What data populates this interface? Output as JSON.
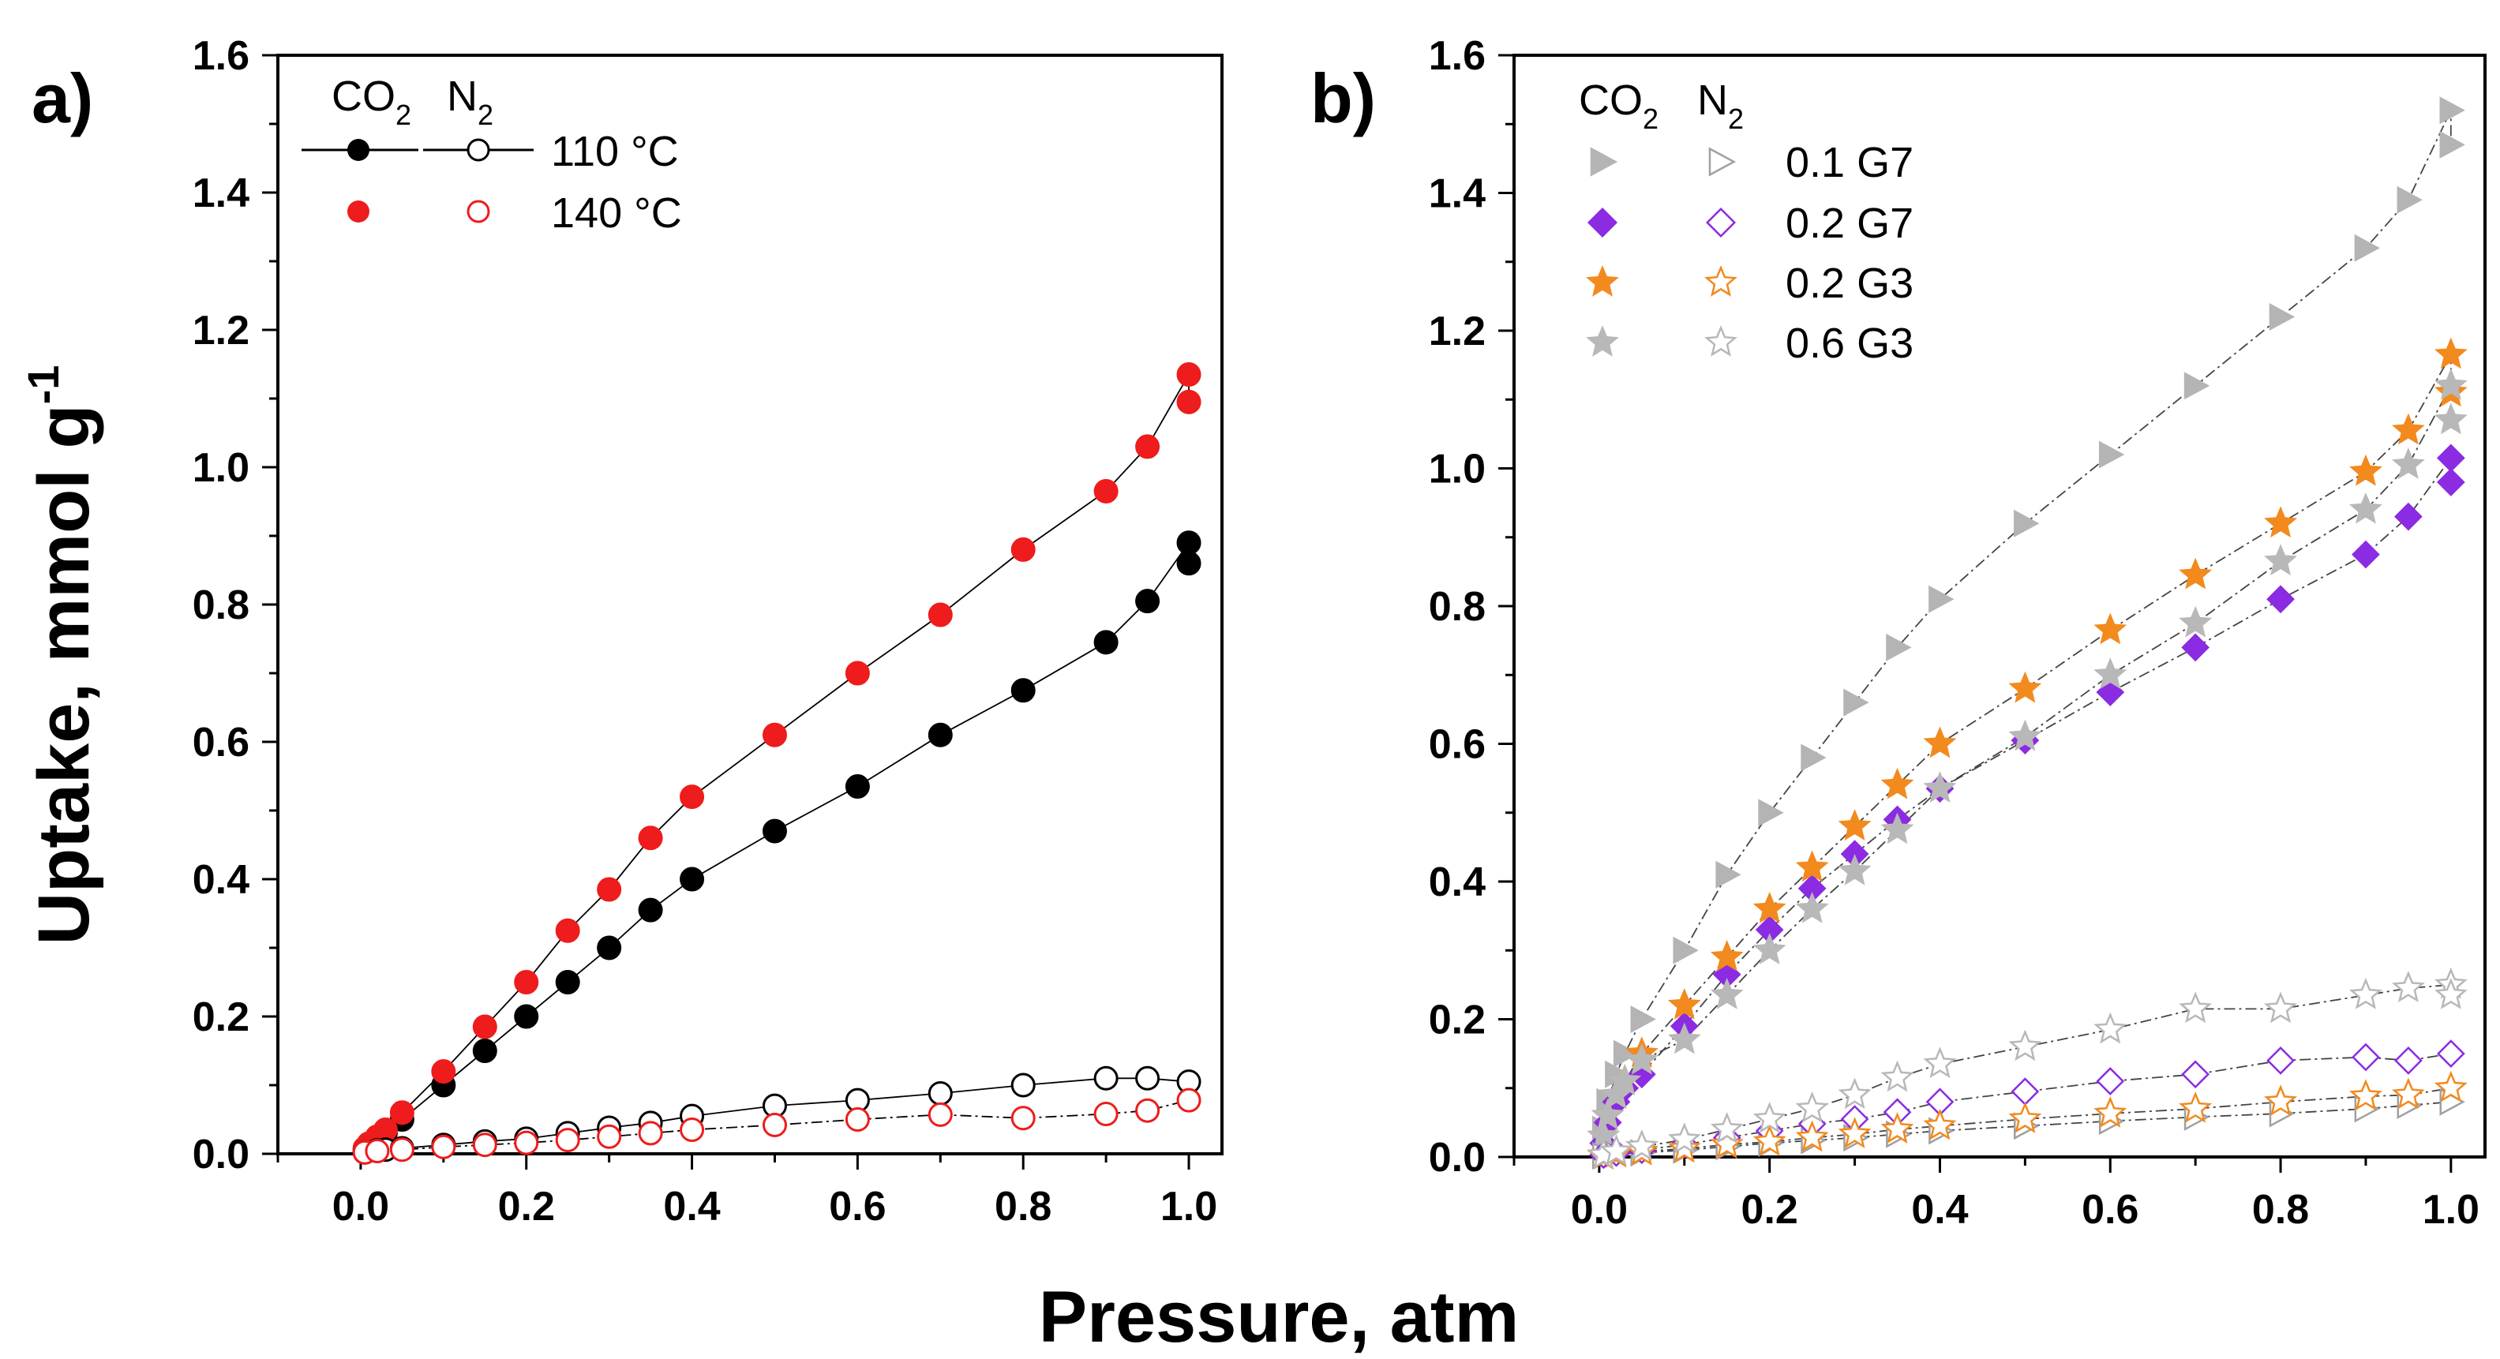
{
  "figure": {
    "x_axis_title": "Pressure, atm",
    "y_axis_title": "Uptake, mmol g",
    "y_axis_title_sup": "-1"
  },
  "chart_data": [
    {
      "panel": "a)",
      "type": "scatter",
      "xlim": [
        -0.1,
        1.04
      ],
      "ylim": [
        0,
        1.6
      ],
      "xticks": [
        0.0,
        0.2,
        0.4,
        0.6,
        0.8,
        1.0
      ],
      "yticks": [
        0.0,
        0.2,
        0.4,
        0.6,
        0.8,
        1.0,
        1.2,
        1.4,
        1.6
      ],
      "xtick_labels": [
        "0.0",
        "0.2",
        "0.4",
        "0.6",
        "0.8",
        "1.0"
      ],
      "ytick_labels": [
        "0.0",
        "0.2",
        "0.4",
        "0.6",
        "0.8",
        "1.0",
        "1.2",
        "1.4",
        "1.6"
      ],
      "legend_header": {
        "co2": "CO",
        "co2_sub": "2",
        "n2": "N",
        "n2_sub": "2"
      },
      "legend_entries": [
        {
          "label": "110 °C",
          "co2_series": "CO2 110 °C",
          "n2_series": "N2 110 °C",
          "with_line": true
        },
        {
          "label": "140 °C",
          "co2_series": "CO2 140 °C",
          "n2_series": "N2 140 °C",
          "with_line": false
        }
      ],
      "series": [
        {
          "name": "CO2 110 °C",
          "gas": "CO2",
          "marker": "circle",
          "filled": true,
          "color": "#000000",
          "line": "solid",
          "x": [
            0.005,
            0.01,
            0.02,
            0.03,
            0.05,
            0.1,
            0.15,
            0.2,
            0.25,
            0.3,
            0.35,
            0.4,
            0.5,
            0.6,
            0.7,
            0.8,
            0.9,
            0.95,
            1.0,
            1.0
          ],
          "y": [
            0.005,
            0.01,
            0.02,
            0.03,
            0.05,
            0.1,
            0.15,
            0.2,
            0.25,
            0.3,
            0.355,
            0.4,
            0.47,
            0.535,
            0.61,
            0.675,
            0.745,
            0.805,
            0.89,
            0.86
          ]
        },
        {
          "name": "CO2 140 °C",
          "gas": "CO2",
          "marker": "circle",
          "filled": true,
          "color": "#ee1c1c",
          "line": "solid",
          "x": [
            0.005,
            0.01,
            0.02,
            0.03,
            0.05,
            0.1,
            0.15,
            0.2,
            0.25,
            0.3,
            0.35,
            0.4,
            0.5,
            0.6,
            0.7,
            0.8,
            0.9,
            0.95,
            1.0,
            1.0
          ],
          "y": [
            0.008,
            0.015,
            0.025,
            0.035,
            0.06,
            0.12,
            0.185,
            0.25,
            0.325,
            0.385,
            0.46,
            0.52,
            0.61,
            0.7,
            0.785,
            0.88,
            0.965,
            1.03,
            1.135,
            1.095
          ]
        },
        {
          "name": "N2 110 °C",
          "gas": "N2",
          "marker": "circle",
          "filled": false,
          "color": "#000000",
          "line": "solid",
          "x": [
            0.005,
            0.02,
            0.03,
            0.05,
            0.1,
            0.15,
            0.2,
            0.25,
            0.3,
            0.35,
            0.4,
            0.5,
            0.6,
            0.7,
            0.8,
            0.9,
            0.95,
            1.0
          ],
          "y": [
            0.002,
            0.005,
            0.006,
            0.008,
            0.013,
            0.018,
            0.022,
            0.03,
            0.038,
            0.045,
            0.055,
            0.07,
            0.078,
            0.088,
            0.1,
            0.11,
            0.11,
            0.105
          ]
        },
        {
          "name": "N2 140 °C",
          "gas": "N2",
          "marker": "circle",
          "filled": false,
          "color": "#ee1c1c",
          "line": "dashed",
          "x": [
            0.005,
            0.02,
            0.05,
            0.1,
            0.15,
            0.2,
            0.25,
            0.3,
            0.35,
            0.4,
            0.5,
            0.6,
            0.7,
            0.8,
            0.9,
            0.95,
            1.0
          ],
          "y": [
            0.002,
            0.004,
            0.006,
            0.01,
            0.013,
            0.016,
            0.02,
            0.025,
            0.03,
            0.035,
            0.042,
            0.05,
            0.057,
            0.052,
            0.058,
            0.063,
            0.078
          ]
        }
      ]
    },
    {
      "panel": "b)",
      "type": "scatter",
      "xlim": [
        -0.1,
        1.04
      ],
      "ylim": [
        0,
        1.6
      ],
      "xticks": [
        0.0,
        0.2,
        0.4,
        0.6,
        0.8,
        1.0
      ],
      "yticks": [
        0.0,
        0.2,
        0.4,
        0.6,
        0.8,
        1.0,
        1.2,
        1.4,
        1.6
      ],
      "xtick_labels": [
        "0.0",
        "0.2",
        "0.4",
        "0.6",
        "0.8",
        "1.0"
      ],
      "ytick_labels": [
        "0.0",
        "0.2",
        "0.4",
        "0.6",
        "0.8",
        "1.0",
        "1.2",
        "1.4",
        "1.6"
      ],
      "legend_header": {
        "co2": "CO",
        "co2_sub": "2",
        "n2": "N",
        "n2_sub": "2"
      },
      "legend_entries": [
        {
          "label": "0.1 G7",
          "co2_series": "CO2 0.1 G7",
          "n2_series": "N2 0.1 G7"
        },
        {
          "label": "0.2 G7",
          "co2_series": "CO2 0.2 G7",
          "n2_series": "N2 0.2 G7"
        },
        {
          "label": "0.2 G3",
          "co2_series": "CO2 0.2 G3",
          "n2_series": "N2 0.2 G3"
        },
        {
          "label": "0.6 G3",
          "co2_series": "CO2 0.6 G3",
          "n2_series": "N2 0.6 G3"
        }
      ],
      "series": [
        {
          "name": "CO2 0.1 G7",
          "gas": "CO2",
          "marker": "triangle-right",
          "filled": true,
          "color": "#b4b4b4",
          "line": "dashed",
          "x": [
            0.005,
            0.01,
            0.02,
            0.03,
            0.05,
            0.1,
            0.15,
            0.2,
            0.25,
            0.3,
            0.35,
            0.4,
            0.5,
            0.6,
            0.7,
            0.8,
            0.9,
            0.95,
            1.0,
            1.0
          ],
          "y": [
            0.04,
            0.08,
            0.12,
            0.15,
            0.2,
            0.3,
            0.41,
            0.5,
            0.58,
            0.66,
            0.74,
            0.81,
            0.92,
            1.02,
            1.12,
            1.22,
            1.32,
            1.39,
            1.52,
            1.47
          ]
        },
        {
          "name": "CO2 0.2 G7",
          "gas": "CO2",
          "marker": "diamond",
          "filled": true,
          "color": "#8b2be2",
          "line": "dashed",
          "x": [
            0.005,
            0.01,
            0.02,
            0.03,
            0.05,
            0.1,
            0.15,
            0.2,
            0.25,
            0.3,
            0.35,
            0.4,
            0.5,
            0.6,
            0.7,
            0.8,
            0.9,
            0.95,
            1.0,
            1.0
          ],
          "y": [
            0.02,
            0.05,
            0.08,
            0.1,
            0.12,
            0.19,
            0.265,
            0.33,
            0.39,
            0.44,
            0.49,
            0.535,
            0.605,
            0.675,
            0.74,
            0.81,
            0.875,
            0.93,
            1.015,
            0.98
          ]
        },
        {
          "name": "CO2 0.2 G3",
          "gas": "CO2",
          "marker": "star",
          "filled": true,
          "color": "#f28a1e",
          "line": "dashed",
          "x": [
            0.005,
            0.01,
            0.02,
            0.03,
            0.05,
            0.1,
            0.15,
            0.2,
            0.25,
            0.3,
            0.35,
            0.4,
            0.5,
            0.6,
            0.7,
            0.8,
            0.9,
            0.95,
            1.0,
            1.0
          ],
          "y": [
            0.03,
            0.06,
            0.09,
            0.11,
            0.15,
            0.22,
            0.29,
            0.36,
            0.42,
            0.48,
            0.54,
            0.6,
            0.68,
            0.765,
            0.845,
            0.92,
            0.995,
            1.055,
            1.165,
            1.11
          ]
        },
        {
          "name": "CO2 0.6 G3",
          "gas": "CO2",
          "marker": "star",
          "filled": true,
          "color": "#b8b8b8",
          "line": "dashed",
          "x": [
            0.005,
            0.01,
            0.02,
            0.03,
            0.05,
            0.1,
            0.15,
            0.2,
            0.25,
            0.3,
            0.35,
            0.4,
            0.5,
            0.6,
            0.7,
            0.8,
            0.9,
            0.95,
            1.0,
            1.0
          ],
          "y": [
            0.03,
            0.06,
            0.09,
            0.11,
            0.14,
            0.17,
            0.235,
            0.3,
            0.36,
            0.415,
            0.475,
            0.535,
            0.61,
            0.7,
            0.775,
            0.865,
            0.94,
            1.005,
            1.12,
            1.07
          ]
        },
        {
          "name": "N2 0.1 G7",
          "gas": "N2",
          "marker": "triangle-right",
          "filled": false,
          "color": "#a0a0a0",
          "line": "dashed",
          "x": [
            0.005,
            0.02,
            0.05,
            0.1,
            0.15,
            0.2,
            0.25,
            0.3,
            0.35,
            0.4,
            0.5,
            0.6,
            0.7,
            0.8,
            0.9,
            0.95,
            1.0
          ],
          "y": [
            0.002,
            0.004,
            0.006,
            0.01,
            0.015,
            0.02,
            0.024,
            0.028,
            0.033,
            0.038,
            0.045,
            0.052,
            0.058,
            0.063,
            0.07,
            0.075,
            0.08
          ]
        },
        {
          "name": "N2 0.2 G7",
          "gas": "N2",
          "marker": "diamond",
          "filled": false,
          "color": "#8b2be2",
          "line": "dashed",
          "x": [
            0.005,
            0.02,
            0.05,
            0.1,
            0.15,
            0.2,
            0.25,
            0.3,
            0.35,
            0.4,
            0.5,
            0.6,
            0.7,
            0.8,
            0.9,
            0.95,
            1.0
          ],
          "y": [
            0.003,
            0.006,
            0.01,
            0.018,
            0.028,
            0.038,
            0.048,
            0.055,
            0.065,
            0.08,
            0.095,
            0.11,
            0.12,
            0.14,
            0.145,
            0.14,
            0.15
          ]
        },
        {
          "name": "N2 0.2 G3",
          "gas": "N2",
          "marker": "star",
          "filled": false,
          "color": "#f28a1e",
          "line": "dashed",
          "x": [
            0.005,
            0.02,
            0.05,
            0.1,
            0.15,
            0.2,
            0.25,
            0.3,
            0.35,
            0.4,
            0.5,
            0.6,
            0.7,
            0.8,
            0.9,
            0.95,
            1.0
          ],
          "y": [
            0.002,
            0.005,
            0.008,
            0.012,
            0.018,
            0.022,
            0.028,
            0.033,
            0.04,
            0.045,
            0.055,
            0.063,
            0.07,
            0.08,
            0.088,
            0.09,
            0.1
          ]
        },
        {
          "name": "N2 0.6 G3",
          "gas": "N2",
          "marker": "star",
          "filled": false,
          "color": "#b8b8b8",
          "line": "dashed",
          "x": [
            0.005,
            0.02,
            0.05,
            0.1,
            0.15,
            0.2,
            0.25,
            0.3,
            0.35,
            0.4,
            0.5,
            0.6,
            0.7,
            0.8,
            0.9,
            0.95,
            1.0,
            1.0
          ],
          "y": [
            0.003,
            0.008,
            0.015,
            0.025,
            0.04,
            0.055,
            0.07,
            0.09,
            0.115,
            0.135,
            0.16,
            0.185,
            0.215,
            0.215,
            0.235,
            0.245,
            0.25,
            0.235
          ]
        }
      ]
    }
  ]
}
